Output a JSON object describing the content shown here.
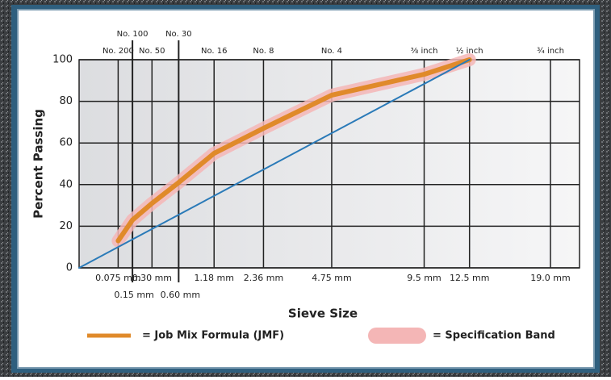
{
  "chart_data": {
    "type": "line",
    "x_label": "Sieve Size",
    "y_label": "Percent Passing",
    "x_exponent": 0.45,
    "xlim": [
      0,
      19.0
    ],
    "ylim": [
      0,
      100
    ],
    "yticks": [
      0,
      20,
      40,
      60,
      80,
      100
    ],
    "xticks": [
      {
        "value": 0.075,
        "label": "0.075 mm"
      },
      {
        "value": 0.15,
        "label": "0.15 mm"
      },
      {
        "value": 0.3,
        "label": "0.30 mm"
      },
      {
        "value": 0.6,
        "label": "0.60 mm"
      },
      {
        "value": 1.18,
        "label": "1.18 mm"
      },
      {
        "value": 2.36,
        "label": "2.36 mm"
      },
      {
        "value": 4.75,
        "label": "4.75 mm"
      },
      {
        "value": 9.5,
        "label": "9.5 mm"
      },
      {
        "value": 12.5,
        "label": "12.5 mm"
      },
      {
        "value": 19.0,
        "label": "19.0 mm"
      }
    ],
    "xticks_top": [
      {
        "value": 0.075,
        "label": "No. 200"
      },
      {
        "value": 0.15,
        "label": "No. 100"
      },
      {
        "value": 0.3,
        "label": "No. 50"
      },
      {
        "value": 0.6,
        "label": "No. 30"
      },
      {
        "value": 1.18,
        "label": "No. 16"
      },
      {
        "value": 2.36,
        "label": "No. 8"
      },
      {
        "value": 4.75,
        "label": "No. 4"
      },
      {
        "value": 9.5,
        "label": "⅜ inch"
      },
      {
        "value": 12.5,
        "label": "½ inch"
      },
      {
        "value": 19.0,
        "label": "¾ inch"
      }
    ],
    "grid": true,
    "series": [
      {
        "name": "= Specification Band",
        "color": "#f4b6b6",
        "style": "band",
        "x": [
          0.075,
          0.15,
          0.3,
          0.6,
          1.18,
          2.36,
          4.75,
          9.5,
          12.5
        ],
        "values": [
          13,
          23,
          31,
          41,
          55,
          67,
          83,
          93,
          100
        ]
      },
      {
        "name": "= Job Mix Formula (JMF)",
        "color": "#e08a2a",
        "style": "line",
        "x": [
          0.075,
          0.15,
          0.3,
          0.6,
          1.18,
          2.36,
          4.75,
          9.5,
          12.5
        ],
        "values": [
          13,
          23,
          31,
          41,
          55,
          67,
          83,
          93,
          100
        ]
      },
      {
        "color": "#2a7ab8",
        "style": "thin",
        "x": [
          0,
          12.5
        ],
        "values": [
          0,
          100
        ]
      }
    ]
  }
}
